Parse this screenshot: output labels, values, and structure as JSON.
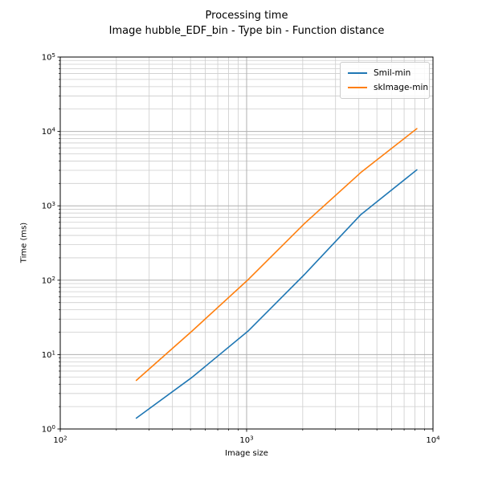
{
  "figure": {
    "title_line1": "Processing time",
    "title_line2": "Image hubble_EDF_bin - Type bin - Function distance"
  },
  "axes": {
    "xlabel": "Image size",
    "ylabel": "Time (ms)"
  },
  "legend": {
    "items": [
      {
        "label": "Smil-min",
        "color": "#1f77b4"
      },
      {
        "label": "skImage-min",
        "color": "#ff7f0e"
      }
    ]
  },
  "chart_data": {
    "type": "line",
    "title": "Processing time",
    "subtitle": "Image hubble_EDF_bin - Type bin - Function distance",
    "xlabel": "Image size",
    "ylabel": "Time (ms)",
    "x_scale": "log",
    "y_scale": "log",
    "xlim": [
      100,
      10000
    ],
    "ylim": [
      1,
      100000
    ],
    "grid": "both major and minor",
    "legend_position": "upper right",
    "x": [
      256,
      512,
      1024,
      2048,
      4096,
      8192
    ],
    "series": [
      {
        "name": "Smil-min",
        "color": "#1f77b4",
        "values": [
          1.4,
          5.0,
          21,
          120,
          760,
          3050
        ]
      },
      {
        "name": "skImage-min",
        "color": "#ff7f0e",
        "values": [
          4.5,
          21,
          103,
          580,
          2800,
          10900
        ]
      }
    ],
    "x_tick_labels": [
      "10^2",
      "10^3",
      "10^4"
    ],
    "y_tick_labels": [
      "10^0",
      "10^1",
      "10^2",
      "10^3",
      "10^4",
      "10^5"
    ]
  },
  "style": {
    "grid_major_color": "#b0b0b0",
    "grid_minor_color": "#cdcdcd",
    "spine_color": "#000000",
    "tick_color": "#000000",
    "legend_border_color": "#cccccc"
  }
}
